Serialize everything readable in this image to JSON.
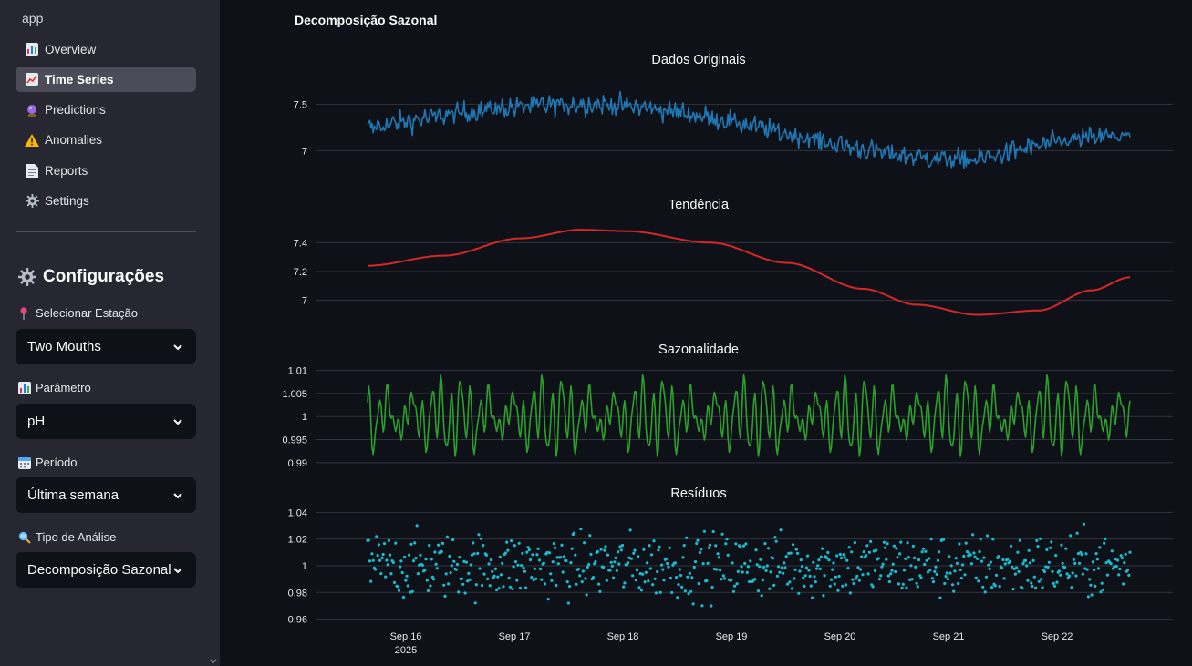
{
  "sidebar": {
    "app_label": "app",
    "nav": [
      {
        "label": "Overview",
        "icon": "bar-chart-icon"
      },
      {
        "label": "Time Series",
        "icon": "line-chart-icon",
        "active": true
      },
      {
        "label": "Predictions",
        "icon": "crystal-ball-icon"
      },
      {
        "label": "Anomalies",
        "icon": "warning-icon"
      },
      {
        "label": "Reports",
        "icon": "document-icon"
      },
      {
        "label": "Settings",
        "icon": "gear-icon"
      }
    ],
    "config_title": "Configurações",
    "station": {
      "label": "Selecionar Estação",
      "value": "Two Mouths"
    },
    "parameter": {
      "label": "Parâmetro",
      "value": "pH"
    },
    "period": {
      "label": "Período",
      "value": "Última semana"
    },
    "analysis": {
      "label": "Tipo de Análise",
      "value": "Decomposição Sazonal"
    }
  },
  "main": {
    "title": "Decomposição Sazonal"
  },
  "chart_data": {
    "type": "line",
    "x_axis": {
      "range": [
        "2025-09-15T12:00",
        "2025-09-22T19:00"
      ],
      "tick_labels": [
        "Sep 16",
        "Sep 17",
        "Sep 18",
        "Sep 19",
        "Sep 20",
        "Sep 21",
        "Sep 22"
      ],
      "year_label": "2025"
    },
    "panels": [
      {
        "title": "Dados Originais",
        "kind": "line",
        "color": "#1f77b4",
        "yticks": [
          7,
          7.5
        ],
        "ylim": [
          6.7,
          7.7
        ],
        "trend": {
          "start": 7.24,
          "peak": 7.5,
          "peak_at": 0.28,
          "trough": 6.9,
          "trough_at": 0.8,
          "end": 7.16
        },
        "noise_amplitude": 0.11
      },
      {
        "title": "Tendência",
        "kind": "line",
        "color": "#d62728",
        "yticks": [
          7,
          7.2,
          7.4
        ],
        "ylim": [
          6.84,
          7.56
        ],
        "points": [
          [
            0.0,
            7.24
          ],
          [
            0.1,
            7.31
          ],
          [
            0.2,
            7.43
          ],
          [
            0.28,
            7.49
          ],
          [
            0.34,
            7.48
          ],
          [
            0.45,
            7.4
          ],
          [
            0.55,
            7.26
          ],
          [
            0.65,
            7.08
          ],
          [
            0.72,
            6.97
          ],
          [
            0.8,
            6.9
          ],
          [
            0.88,
            6.93
          ],
          [
            0.95,
            7.07
          ],
          [
            1.0,
            7.16
          ]
        ]
      },
      {
        "title": "Sazonalidade",
        "kind": "line",
        "color": "#2ca02c",
        "yticks": [
          0.99,
          0.995,
          1,
          1.005,
          1.01
        ],
        "ylim": [
          0.9882,
          1.0113
        ],
        "period_hours": 24,
        "amplitude": 0.0105
      },
      {
        "title": "Resíduos",
        "kind": "scatter",
        "color": "#17becf",
        "yticks": [
          0.96,
          0.98,
          1,
          1.02,
          1.04
        ],
        "ylim": [
          0.957,
          1.045
        ],
        "spread": 0.012,
        "outlier_range": [
          0.963,
          1.04
        ]
      }
    ]
  }
}
